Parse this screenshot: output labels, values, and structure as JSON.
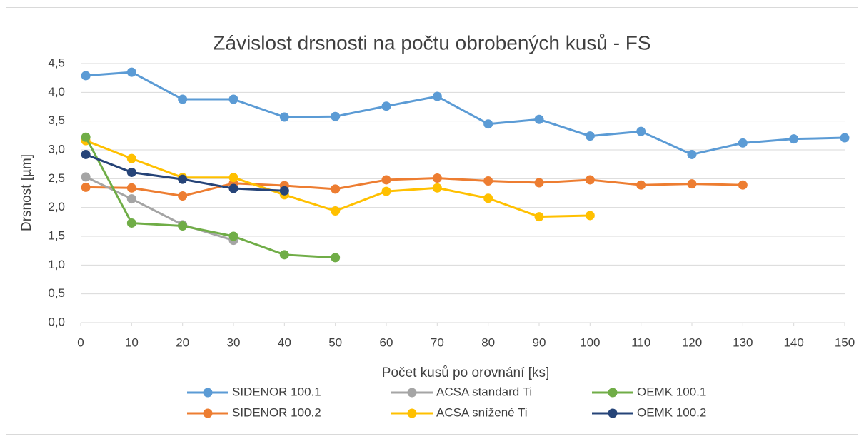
{
  "chart_data": {
    "type": "line",
    "title": "Závislost drsnosti na počtu obrobených kusů - FS",
    "x_label": "Počet kusů po orovnání [ks]",
    "y_label": "Drsnost [µm]",
    "x": [
      1,
      10,
      20,
      30,
      40,
      50,
      60,
      70,
      80,
      90,
      100,
      110,
      120,
      130,
      140,
      150
    ],
    "series": [
      {
        "name": "SIDENOR 100.1",
        "color": "#5b9bd5",
        "values": [
          4.29,
          4.35,
          3.88,
          3.88,
          3.57,
          3.58,
          3.76,
          3.93,
          3.45,
          3.53,
          3.24,
          3.32,
          2.92,
          3.12,
          3.19,
          3.21
        ]
      },
      {
        "name": "SIDENOR 100.2",
        "color": "#ed7d31",
        "values": [
          2.35,
          2.34,
          2.2,
          2.42,
          2.38,
          2.32,
          2.48,
          2.51,
          2.46,
          2.43,
          2.48,
          2.39,
          2.41,
          2.39,
          null,
          null
        ]
      },
      {
        "name": "ACSA standard Ti",
        "color": "#a5a5a5",
        "values": [
          2.53,
          2.15,
          1.7,
          1.43,
          null,
          null,
          null,
          null,
          null,
          null,
          null,
          null,
          null,
          null,
          null,
          null
        ]
      },
      {
        "name": "ACSA snížené Ti",
        "color": "#ffc000",
        "values": [
          3.16,
          2.85,
          2.52,
          2.52,
          2.22,
          1.94,
          2.28,
          2.34,
          2.16,
          1.84,
          1.86,
          null,
          null,
          null,
          null,
          null
        ]
      },
      {
        "name": "OEMK 100.1",
        "color": "#70ad47",
        "values": [
          3.22,
          1.73,
          1.68,
          1.5,
          1.18,
          1.13,
          null,
          null,
          null,
          null,
          null,
          null,
          null,
          null,
          null,
          null
        ]
      },
      {
        "name": "OEMK 100.2",
        "color": "#264478",
        "values": [
          2.92,
          2.61,
          2.49,
          2.33,
          2.29,
          null,
          null,
          null,
          null,
          null,
          null,
          null,
          null,
          null,
          null,
          null
        ]
      }
    ],
    "xlim": [
      0,
      150
    ],
    "xticks": [
      0,
      10,
      20,
      30,
      40,
      50,
      60,
      70,
      80,
      90,
      100,
      110,
      120,
      130,
      140,
      150
    ],
    "ylim": [
      0,
      4.5
    ],
    "yticks": [
      {
        "value": 0,
        "label": "0,0"
      },
      {
        "value": 0.5,
        "label": "0,5"
      },
      {
        "value": 1,
        "label": "1,0"
      },
      {
        "value": 1.5,
        "label": "1,5"
      },
      {
        "value": 2,
        "label": "2,0"
      },
      {
        "value": 2.5,
        "label": "2,5"
      },
      {
        "value": 3,
        "label": "3,0"
      },
      {
        "value": 3.5,
        "label": "3,5"
      },
      {
        "value": 4,
        "label": "4,0"
      },
      {
        "value": 4.5,
        "label": "4,5"
      }
    ],
    "grid": true,
    "legend": "bottom"
  }
}
